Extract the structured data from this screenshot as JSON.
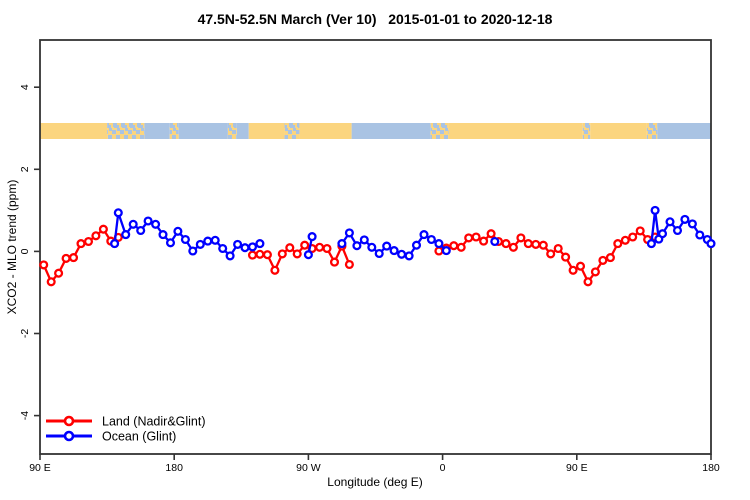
{
  "chart_data": {
    "type": "line",
    "title": "47.5N-52.5N March (Ver 10)   2015-01-01 to 2020-12-18",
    "xlabel": "Longitude (deg E)",
    "ylabel": "XCO2 - MLO trend (ppm)",
    "xlim": [
      90,
      540
    ],
    "ylim": [
      -4.9,
      5.1
    ],
    "grid": false,
    "frame_color": "#333333",
    "x_ticks": [
      {
        "value": 90,
        "label": "90 E"
      },
      {
        "value": 180,
        "label": "180"
      },
      {
        "value": 270,
        "label": "90 W"
      },
      {
        "value": 360,
        "label": "0"
      },
      {
        "value": 450,
        "label": "90 E"
      },
      {
        "value": 540,
        "label": "180"
      }
    ],
    "y_ticks": [
      {
        "value": -4,
        "label": "-4"
      },
      {
        "value": -2,
        "label": "-2"
      },
      {
        "value": 0,
        "label": "0"
      },
      {
        "value": 2,
        "label": "2"
      },
      {
        "value": 4,
        "label": "4"
      }
    ],
    "legend_position": "bottom-left",
    "series": [
      {
        "name": "Land (Nadir&Glint)",
        "color": "#FF0000",
        "marker": "open-circle",
        "segments": [
          [
            [
              92.5,
              -0.33
            ],
            [
              97.5,
              -0.74
            ],
            [
              102.5,
              -0.53
            ],
            [
              107.5,
              -0.17
            ],
            [
              112.5,
              -0.15
            ],
            [
              117.5,
              0.19
            ],
            [
              122.5,
              0.24
            ],
            [
              127.5,
              0.38
            ],
            [
              132.5,
              0.54
            ],
            [
              137.5,
              0.25
            ],
            [
              142.5,
              0.34
            ]
          ],
          [
            [
              232.5,
              -0.09
            ],
            [
              237.5,
              -0.07
            ],
            [
              242.5,
              -0.08
            ],
            [
              247.5,
              -0.46
            ],
            [
              252.5,
              -0.06
            ],
            [
              257.5,
              0.09
            ],
            [
              262.5,
              -0.06
            ],
            [
              267.5,
              0.15
            ],
            [
              272.5,
              0.07
            ],
            [
              277.5,
              0.1
            ],
            [
              282.5,
              0.07
            ],
            [
              287.5,
              -0.26
            ],
            [
              292.5,
              0.13
            ],
            [
              297.5,
              -0.32
            ]
          ],
          [
            [
              357.5,
              0.01
            ],
            [
              362.5,
              0.08
            ],
            [
              367.5,
              0.14
            ],
            [
              372.5,
              0.1
            ],
            [
              377.5,
              0.33
            ],
            [
              382.5,
              0.35
            ],
            [
              387.5,
              0.25
            ],
            [
              392.5,
              0.43
            ],
            [
              397.5,
              0.24
            ],
            [
              402.5,
              0.19
            ],
            [
              407.5,
              0.1
            ],
            [
              412.5,
              0.33
            ],
            [
              417.5,
              0.19
            ],
            [
              422.5,
              0.17
            ],
            [
              427.5,
              0.15
            ],
            [
              432.5,
              -0.06
            ],
            [
              437.5,
              0.07
            ],
            [
              442.5,
              -0.14
            ],
            [
              447.5,
              -0.46
            ],
            [
              452.5,
              -0.36
            ],
            [
              457.5,
              -0.74
            ],
            [
              462.5,
              -0.5
            ],
            [
              467.5,
              -0.22
            ],
            [
              472.5,
              -0.15
            ],
            [
              477.5,
              0.19
            ],
            [
              482.5,
              0.27
            ],
            [
              487.5,
              0.35
            ],
            [
              492.5,
              0.5
            ],
            [
              497.5,
              0.29
            ],
            [
              502.5,
              0.35
            ]
          ]
        ]
      },
      {
        "name": "Ocean (Glint)",
        "color": "#0000FF",
        "marker": "open-circle",
        "segments": [
          [
            [
              140,
              0.19
            ],
            [
              142.5,
              0.94
            ],
            [
              147.5,
              0.41
            ],
            [
              152.5,
              0.66
            ],
            [
              157.5,
              0.51
            ],
            [
              162.5,
              0.74
            ],
            [
              167.5,
              0.66
            ],
            [
              172.5,
              0.41
            ],
            [
              177.5,
              0.21
            ],
            [
              182.5,
              0.49
            ],
            [
              187.5,
              0.29
            ],
            [
              192.5,
              0.01
            ],
            [
              197.5,
              0.17
            ],
            [
              202.5,
              0.25
            ],
            [
              207.5,
              0.27
            ],
            [
              212.5,
              0.07
            ],
            [
              217.5,
              -0.11
            ],
            [
              222.5,
              0.17
            ],
            [
              227.5,
              0.09
            ],
            [
              232.5,
              0.11
            ],
            [
              237.5,
              0.19
            ]
          ],
          [
            [
              270,
              -0.08
            ],
            [
              272.5,
              0.36
            ]
          ],
          [
            [
              292.5,
              0.19
            ],
            [
              297.5,
              0.45
            ],
            [
              302.5,
              0.14
            ],
            [
              307.5,
              0.28
            ],
            [
              312.5,
              0.1
            ],
            [
              317.5,
              -0.05
            ],
            [
              322.5,
              0.13
            ],
            [
              327.5,
              0.02
            ],
            [
              332.5,
              -0.07
            ],
            [
              337.5,
              -0.11
            ],
            [
              342.5,
              0.15
            ],
            [
              347.5,
              0.41
            ],
            [
              352.5,
              0.29
            ],
            [
              357.5,
              0.19
            ],
            [
              362.5,
              0.02
            ]
          ],
          [
            [
              395,
              0.24
            ]
          ],
          [
            [
              500,
              0.19
            ],
            [
              502.5,
              1.0
            ],
            [
              505,
              0.3
            ],
            [
              507.5,
              0.43
            ],
            [
              512.5,
              0.72
            ],
            [
              517.5,
              0.51
            ],
            [
              522.5,
              0.78
            ],
            [
              527.5,
              0.67
            ],
            [
              532.5,
              0.4
            ],
            [
              537.5,
              0.29
            ],
            [
              540,
              0.19
            ]
          ]
        ]
      }
    ],
    "surface_band": {
      "description": "land/ocean surface-type strip",
      "center_value": 3.0,
      "colors": {
        "land": "#FBD57F",
        "ocean": "#A9C3E3"
      },
      "segments": [
        {
          "from": 90,
          "to": 135,
          "type": "land"
        },
        {
          "from": 135,
          "to": 160,
          "type": "mixed"
        },
        {
          "from": 160,
          "to": 177,
          "type": "ocean"
        },
        {
          "from": 177,
          "to": 183,
          "type": "mixed"
        },
        {
          "from": 183,
          "to": 216,
          "type": "ocean"
        },
        {
          "from": 216,
          "to": 222,
          "type": "mixed"
        },
        {
          "from": 222,
          "to": 230,
          "type": "ocean"
        },
        {
          "from": 230,
          "to": 254,
          "type": "land"
        },
        {
          "from": 254,
          "to": 264,
          "type": "mixed"
        },
        {
          "from": 264,
          "to": 299,
          "type": "land"
        },
        {
          "from": 299,
          "to": 352,
          "type": "ocean"
        },
        {
          "from": 352,
          "to": 364,
          "type": "mixed"
        },
        {
          "from": 364,
          "to": 454,
          "type": "land"
        },
        {
          "from": 454,
          "to": 459,
          "type": "mixed"
        },
        {
          "from": 459,
          "to": 497,
          "type": "land"
        },
        {
          "from": 497,
          "to": 504,
          "type": "mixed"
        },
        {
          "from": 504,
          "to": 540,
          "type": "ocean"
        }
      ]
    },
    "legend": {
      "items": [
        {
          "label": "Land (Nadir&Glint)",
          "color": "#FF0000"
        },
        {
          "label": "Ocean (Glint)",
          "color": "#0000FF"
        }
      ]
    }
  }
}
